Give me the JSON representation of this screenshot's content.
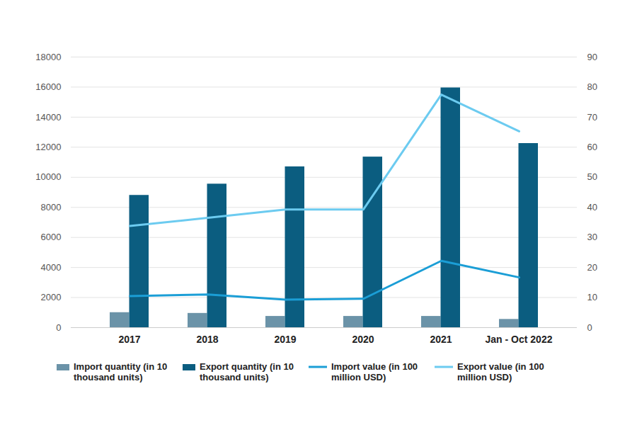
{
  "chart_data": {
    "type": "bar",
    "categories": [
      "2017",
      "2018",
      "2019",
      "2020",
      "2021",
      "Jan - Oct 2022"
    ],
    "series": [
      {
        "name": "Import quantity (in 10 thousand units)",
        "type": "bar",
        "color": "#6b93a8",
        "values": [
          1000,
          950,
          750,
          750,
          750,
          550
        ]
      },
      {
        "name": "Export quantity (in 10 thousand units)",
        "type": "bar",
        "color": "#0b5d80",
        "values": [
          8800,
          9550,
          10700,
          11350,
          15950,
          12250
        ]
      },
      {
        "name": "Import value (in 100 million USD)",
        "type": "line",
        "axis": "y2",
        "color": "#1b9ed6",
        "values": [
          10.5,
          11,
          9.3,
          9.6,
          22.2,
          16.7
        ]
      },
      {
        "name": "Export value (in 100 million USD)",
        "type": "line",
        "axis": "y2",
        "color": "#6ccbf0",
        "values": [
          33.8,
          36.5,
          39.3,
          39.3,
          77.5,
          65.3
        ]
      }
    ],
    "ylim": [
      0,
      18000
    ],
    "yticks": [
      0,
      2000,
      4000,
      6000,
      8000,
      10000,
      12000,
      14000,
      16000,
      18000
    ],
    "y2lim": [
      0,
      90
    ],
    "y2ticks": [
      0,
      10,
      20,
      30,
      40,
      50,
      60,
      70,
      80,
      90
    ],
    "grid": true,
    "legend": "bottom"
  }
}
